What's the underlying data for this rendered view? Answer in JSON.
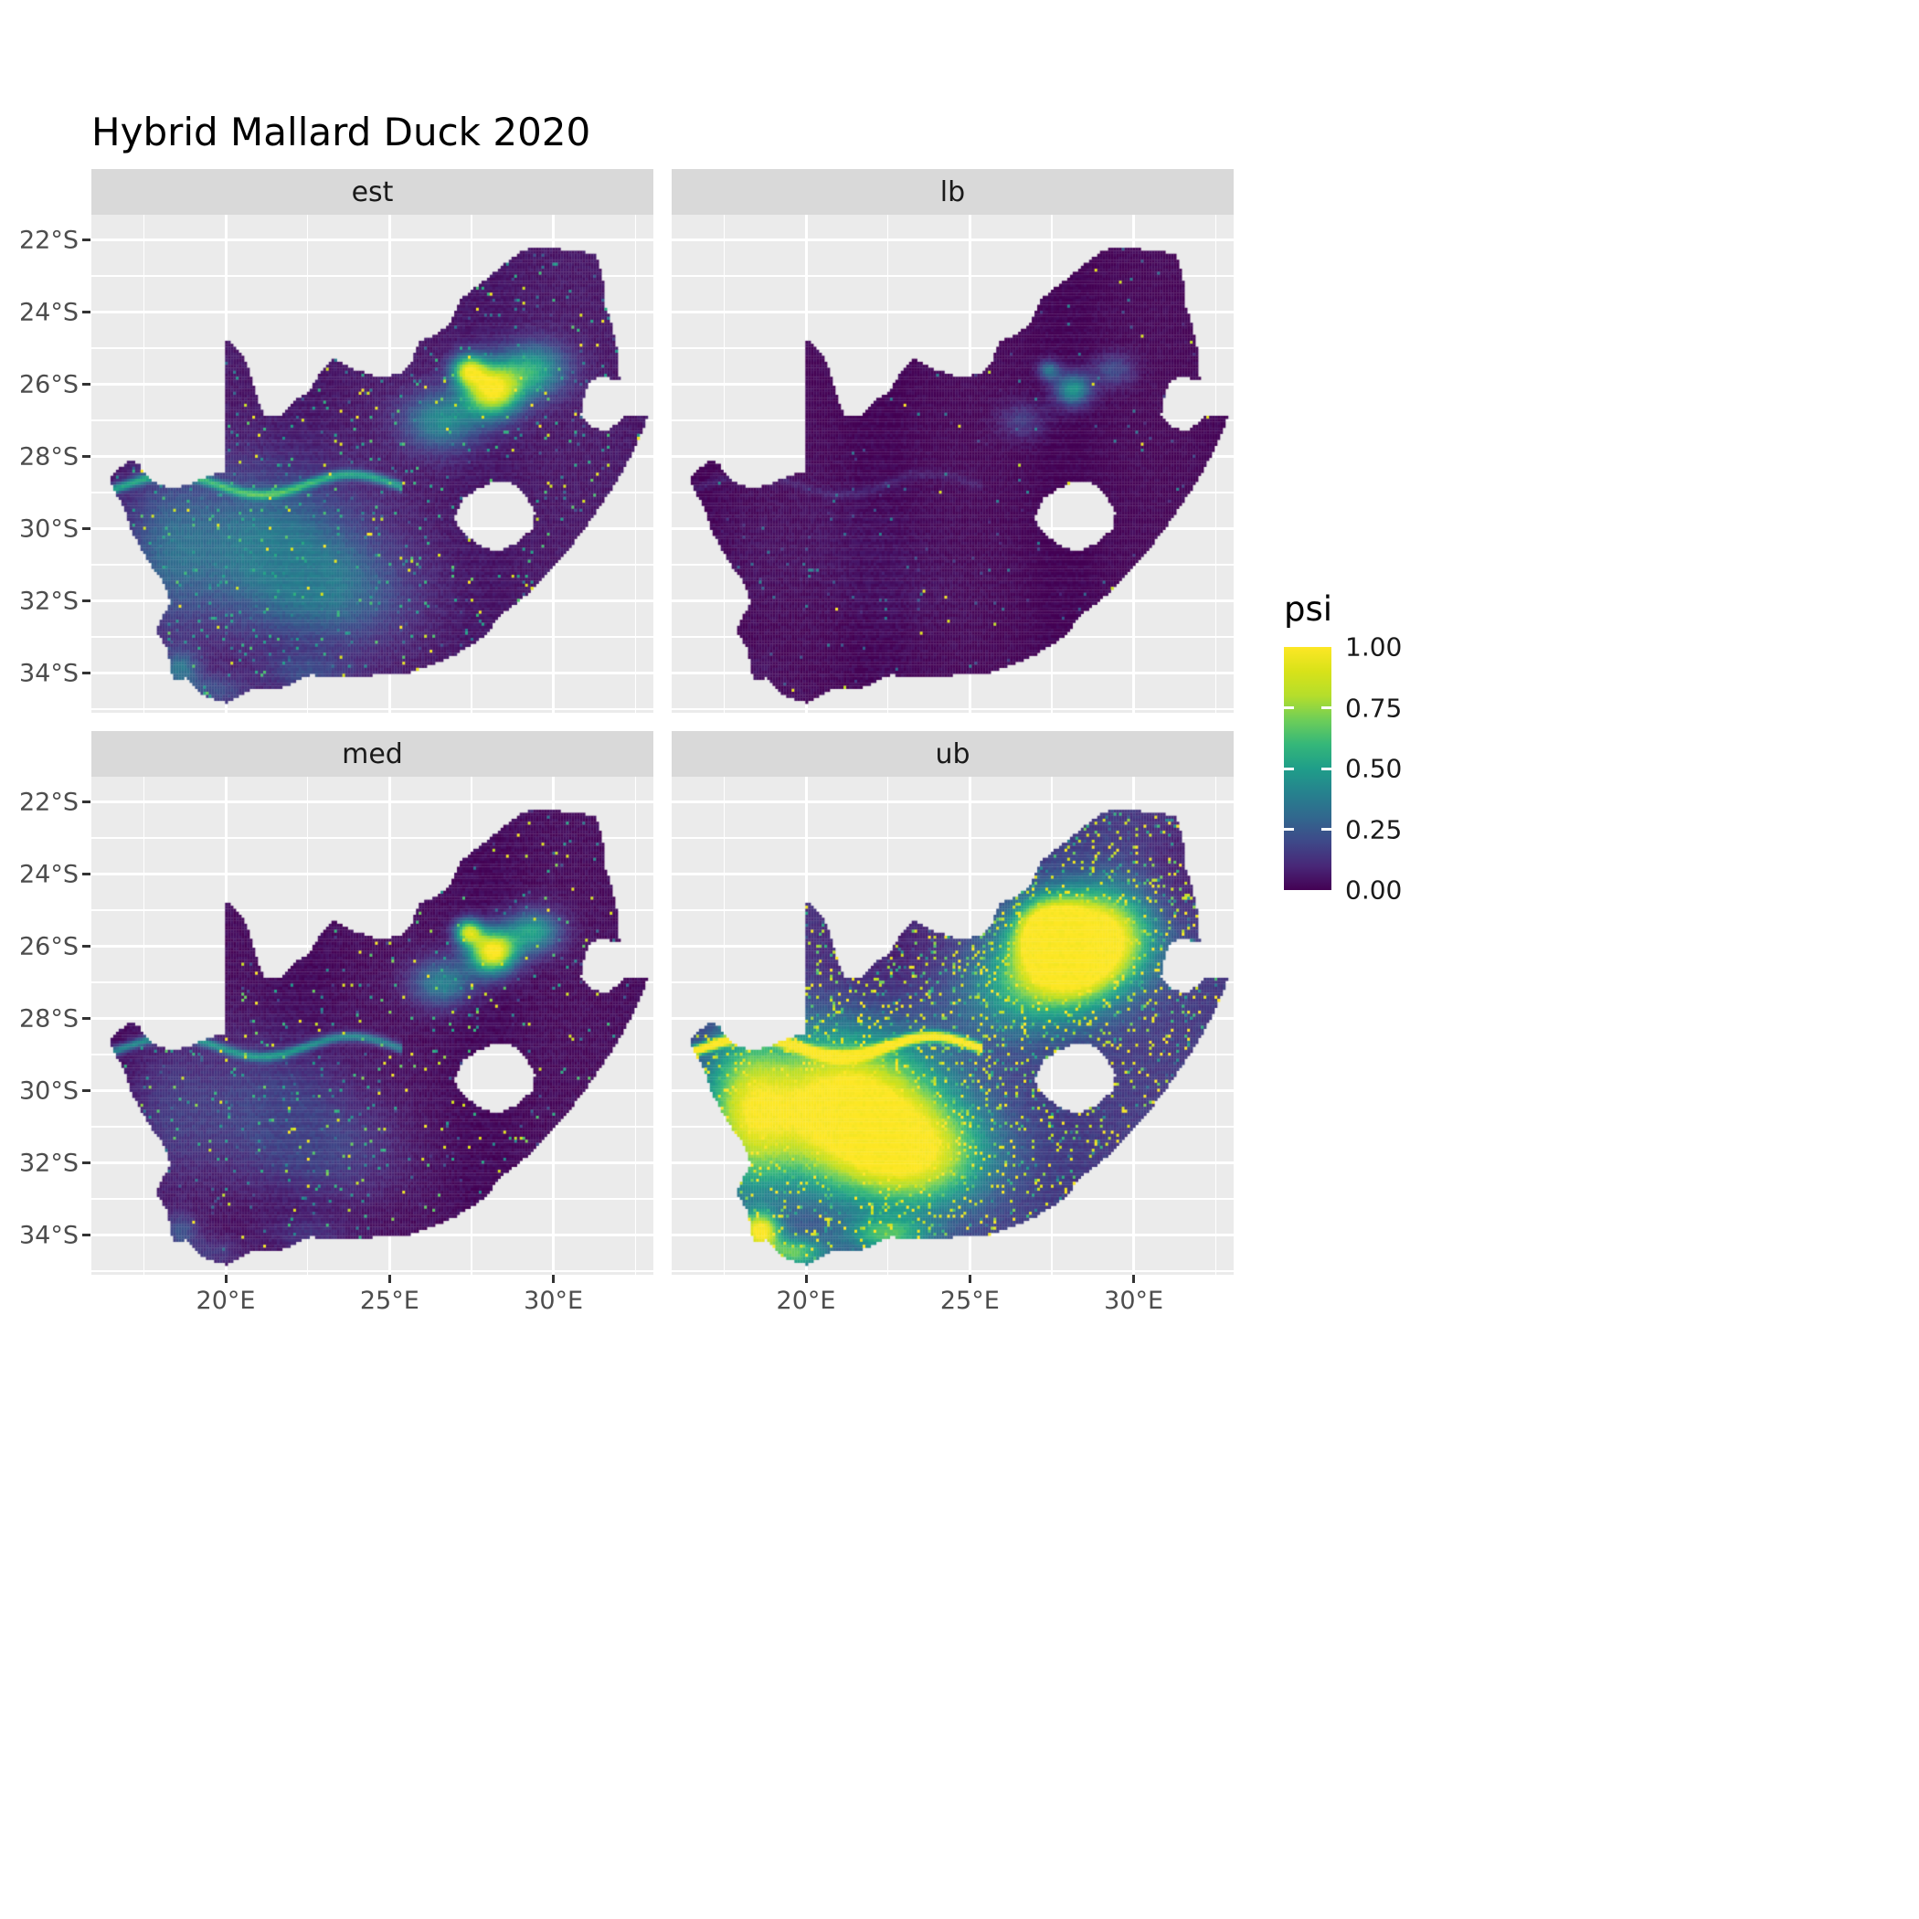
{
  "title": "Hybrid Mallard Duck 2020",
  "facets": [
    {
      "label": "est"
    },
    {
      "label": "lb"
    },
    {
      "label": "med"
    },
    {
      "label": "ub"
    }
  ],
  "x_axis": {
    "ticks": [
      "20°E",
      "25°E",
      "30°E"
    ]
  },
  "y_axis": {
    "ticks": [
      "22°S",
      "24°S",
      "26°S",
      "28°S",
      "30°S",
      "32°S",
      "34°S"
    ]
  },
  "legend": {
    "title": "psi",
    "ticks": [
      "1.00",
      "0.75",
      "0.50",
      "0.25",
      "0.00"
    ],
    "tick_values": [
      1,
      0.75,
      0.5,
      0.25,
      0
    ]
  },
  "colors": {
    "background": "#FFFFFF",
    "panel_bg": "#EBEBEB",
    "strip_bg": "#D9D9D9",
    "grid": "#FFFFFF",
    "axis_text": "#4D4D4D",
    "tick_mark": "#333333",
    "title_text": "#000000",
    "viridis": [
      [
        0,
        "#440154"
      ],
      [
        0.1,
        "#482878"
      ],
      [
        0.2,
        "#3E4989"
      ],
      [
        0.3,
        "#31688E"
      ],
      [
        0.4,
        "#26828E"
      ],
      [
        0.5,
        "#1F9E89"
      ],
      [
        0.6,
        "#35B779"
      ],
      [
        0.7,
        "#6ECE58"
      ],
      [
        0.8,
        "#B5DE2B"
      ],
      [
        0.9,
        "#D8E219"
      ],
      [
        1,
        "#FDE725"
      ]
    ]
  },
  "chart_data": {
    "type": "heatmap",
    "subtype": "faceted_raster_map",
    "title": "Hybrid Mallard Duck 2020",
    "region": "South Africa",
    "facets": [
      "est",
      "lb",
      "med",
      "ub"
    ],
    "value_variable": "psi",
    "value_range": [
      0,
      1
    ],
    "legend_breaks": [
      0,
      0.25,
      0.5,
      0.75,
      1
    ],
    "colormap": "viridis",
    "x_ticks_deg_east": [
      20,
      25,
      30
    ],
    "y_ticks_deg_south": [
      22,
      24,
      26,
      28,
      30,
      32,
      34
    ],
    "lon_range": [
      15.9,
      33.05
    ],
    "lat_range": [
      -35.1,
      -21.3
    ],
    "facet_summaries": {
      "est": "Estimated occupancy: strong yellow hotspot over Gauteng/Highveld (~28E, 26S), diffuse moderate teal values over the Karoo/Northern Cape, a teal-yellow line along the Orange River (~28.7S), scattered speckles elsewhere.",
      "lb": "Lower bound: near zero almost everywhere (dark purple) with a small teal hotspot around Gauteng (~28E, 26S).",
      "med": "Median: similar to estimate with sharp yellow Gauteng hotspot and darker background elsewhere.",
      "ub": "Upper bound: widespread high values; large yellow areas over the Northern/Western Cape, along the Orange River and over Gauteng/Highveld; mottled teal/green over most of the country."
    },
    "map_outline_lonlat": [
      [
        16.45,
        -28.58
      ],
      [
        16.78,
        -28.32
      ],
      [
        17.05,
        -28.08
      ],
      [
        17.35,
        -28.22
      ],
      [
        17.6,
        -28.55
      ],
      [
        17.95,
        -28.78
      ],
      [
        18.45,
        -28.88
      ],
      [
        18.95,
        -28.75
      ],
      [
        19.5,
        -28.53
      ],
      [
        19.98,
        -28.43
      ],
      [
        19.98,
        -24.75
      ],
      [
        20.3,
        -24.95
      ],
      [
        20.6,
        -25.35
      ],
      [
        20.8,
        -25.85
      ],
      [
        20.95,
        -26.35
      ],
      [
        21.15,
        -26.85
      ],
      [
        21.7,
        -26.85
      ],
      [
        22.1,
        -26.45
      ],
      [
        22.55,
        -26.2
      ],
      [
        22.85,
        -25.7
      ],
      [
        23.3,
        -25.3
      ],
      [
        23.95,
        -25.6
      ],
      [
        24.7,
        -25.8
      ],
      [
        25.3,
        -25.72
      ],
      [
        25.65,
        -25.45
      ],
      [
        25.9,
        -24.8
      ],
      [
        26.45,
        -24.6
      ],
      [
        26.85,
        -24.3
      ],
      [
        27.15,
        -23.65
      ],
      [
        27.7,
        -23.25
      ],
      [
        28.2,
        -22.9
      ],
      [
        28.95,
        -22.35
      ],
      [
        29.4,
        -22.18
      ],
      [
        29.95,
        -22.2
      ],
      [
        30.5,
        -22.3
      ],
      [
        31.1,
        -22.35
      ],
      [
        31.3,
        -22.4
      ],
      [
        31.5,
        -23.0
      ],
      [
        31.55,
        -23.75
      ],
      [
        31.8,
        -24.4
      ],
      [
        31.95,
        -25.1
      ],
      [
        32.0,
        -25.65
      ],
      [
        32.02,
        -25.9
      ],
      [
        31.4,
        -25.75
      ],
      [
        31.1,
        -25.95
      ],
      [
        30.95,
        -26.3
      ],
      [
        30.82,
        -26.85
      ],
      [
        31.15,
        -27.2
      ],
      [
        31.65,
        -27.3
      ],
      [
        31.97,
        -27.05
      ],
      [
        32.15,
        -26.88
      ],
      [
        32.55,
        -26.85
      ],
      [
        32.89,
        -26.86
      ],
      [
        32.6,
        -27.55
      ],
      [
        32.15,
        -28.35
      ],
      [
        31.7,
        -29.0
      ],
      [
        31.05,
        -29.87
      ],
      [
        30.35,
        -30.7
      ],
      [
        29.85,
        -31.15
      ],
      [
        29.15,
        -31.85
      ],
      [
        28.45,
        -32.35
      ],
      [
        27.85,
        -33.0
      ],
      [
        27.0,
        -33.5
      ],
      [
        26.35,
        -33.75
      ],
      [
        25.65,
        -33.98
      ],
      [
        24.95,
        -34.0
      ],
      [
        24.15,
        -34.1
      ],
      [
        23.35,
        -34.1
      ],
      [
        22.55,
        -34.05
      ],
      [
        21.75,
        -34.4
      ],
      [
        20.85,
        -34.42
      ],
      [
        20.0,
        -34.82
      ],
      [
        19.3,
        -34.62
      ],
      [
        18.8,
        -34.12
      ],
      [
        18.45,
        -34.25
      ],
      [
        18.3,
        -33.92
      ],
      [
        18.25,
        -33.4
      ],
      [
        17.85,
        -32.8
      ],
      [
        18.3,
        -32.05
      ],
      [
        18.15,
        -31.55
      ],
      [
        17.6,
        -30.85
      ],
      [
        17.1,
        -30.0
      ],
      [
        16.9,
        -29.4
      ],
      [
        16.6,
        -28.95
      ]
    ],
    "lesotho_hole_lonlat": [
      [
        27.0,
        -29.65
      ],
      [
        27.25,
        -29.15
      ],
      [
        27.7,
        -28.88
      ],
      [
        28.3,
        -28.65
      ],
      [
        28.8,
        -28.75
      ],
      [
        29.15,
        -29.1
      ],
      [
        29.45,
        -29.55
      ],
      [
        29.35,
        -30.0
      ],
      [
        28.9,
        -30.4
      ],
      [
        28.25,
        -30.65
      ],
      [
        27.7,
        -30.45
      ],
      [
        27.3,
        -30.15
      ],
      [
        27.03,
        -29.9
      ]
    ],
    "facet_models": {
      "est": {
        "seed": 11,
        "base": 0.05,
        "hotspot": 0.95,
        "hot_scale": 1.0,
        "karoo": 0.32,
        "river": 0.45,
        "cape": 0.28,
        "speckle_p": 0.1,
        "speckle_amp": 0.55,
        "town_p": 0.006,
        "power": 1.0
      },
      "lb": {
        "seed": 23,
        "base": 0.02,
        "hotspot": 0.55,
        "hot_scale": 0.7,
        "karoo": 0.06,
        "river": 0.1,
        "cape": 0.06,
        "speckle_p": 0.025,
        "speckle_amp": 0.4,
        "town_p": 0.0015,
        "power": 1.3
      },
      "med": {
        "seed": 37,
        "base": 0.03,
        "hotspot": 1.0,
        "hot_scale": 0.85,
        "karoo": 0.18,
        "river": 0.4,
        "cape": 0.22,
        "speckle_p": 0.07,
        "speckle_amp": 0.65,
        "town_p": 0.006,
        "power": 1.1
      },
      "ub": {
        "seed": 53,
        "base": 0.15,
        "hotspot": 1.05,
        "hot_scale": 1.8,
        "karoo": 1.0,
        "river": 1.0,
        "cape": 0.85,
        "speckle_p": 0.38,
        "speckle_amp": 0.95,
        "town_p": 0.02,
        "power": 1.0,
        "damp": [
          [
            22.6,
            -26.0,
            2.0,
            1.2,
            0.5
          ],
          [
            31.5,
            -24.0,
            0.9,
            1.6,
            0.55
          ]
        ]
      }
    }
  }
}
